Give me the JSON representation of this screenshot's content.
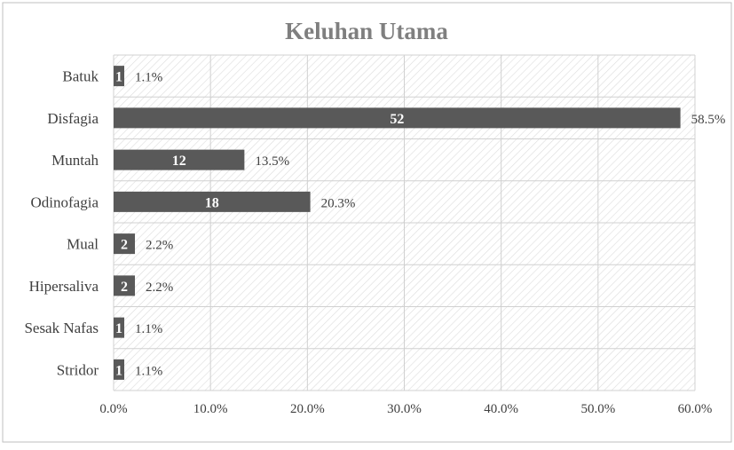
{
  "chart_data": {
    "type": "bar",
    "orientation": "horizontal",
    "title": "Keluhan Utama",
    "xlabel": "",
    "ylabel": "",
    "categories": [
      "Batuk",
      "Disfagia",
      "Muntah",
      "Odinofagia",
      "Mual",
      "Hipersaliva",
      "Sesak Nafas",
      "Stridor"
    ],
    "counts": [
      1,
      52,
      12,
      18,
      2,
      2,
      1,
      1
    ],
    "values": [
      1.1,
      58.5,
      13.5,
      20.3,
      2.2,
      2.2,
      1.1,
      1.1
    ],
    "count_labels": [
      "1",
      "52",
      "12",
      "18",
      "2",
      "2",
      "1",
      "1"
    ],
    "percent_labels": [
      "1.1%",
      "58.5%",
      "13.5%",
      "20.3%",
      "2.2%",
      "2.2%",
      "1.1%",
      "1.1%"
    ],
    "xlim": [
      0,
      60
    ],
    "x_ticks": [
      "0.0%",
      "10.0%",
      "20.0%",
      "30.0%",
      "40.0%",
      "50.0%",
      "60.0%"
    ],
    "grid": true,
    "legend": "none",
    "colors": {
      "bar": "#595959",
      "title": "#7f7f7f",
      "grid": "#d0d0d0",
      "hatch": "#d9d9d9",
      "border": "#bfbfbf",
      "text": "#404040",
      "bar_label": "#ffffff"
    }
  }
}
